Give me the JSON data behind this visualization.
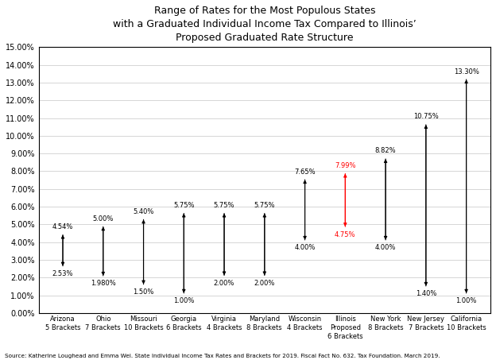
{
  "title": "Range of Rates for the Most Populous States\nwith a Graduated Individual Income Tax Compared to Illinois’\nProposed Graduated Rate Structure",
  "categories": [
    "Arizona\n5 Brackets",
    "Ohio\n7 Brackets",
    "Missouri\n10 Brackets",
    "Georgia\n6 Brackets",
    "Virginia\n4 Brackets",
    "Maryland\n8 Brackets",
    "Wisconsin\n4 Brackets",
    "Illinois\nProposed\n6 Brackets",
    "New York\n8 Brackets",
    "New Jersey\n7 Brackets",
    "California\n10 Brackets"
  ],
  "low_values": [
    2.53,
    1.98,
    1.5,
    1.0,
    2.0,
    2.0,
    4.0,
    4.75,
    4.0,
    1.4,
    1.0
  ],
  "high_values": [
    4.54,
    5.0,
    5.4,
    5.75,
    5.75,
    5.75,
    7.65,
    7.99,
    8.82,
    10.75,
    13.3
  ],
  "low_labels": [
    "2.53%",
    "1.980%",
    "1.50%",
    "1.00%",
    "2.00%",
    "2.00%",
    "4.00%",
    "4.75%",
    "4.00%",
    "1.40%",
    "1.00%"
  ],
  "high_labels": [
    "4.54%",
    "5.00%",
    "5.40%",
    "5.75%",
    "5.75%",
    "5.75%",
    "7.65%",
    "7.99%",
    "8.82%",
    "10.75%",
    "13.30%"
  ],
  "illinois_index": 7,
  "illinois_color": "#ff0000",
  "default_color": "#000000",
  "ylim": [
    0,
    15.0
  ],
  "yticks": [
    0,
    1,
    2,
    3,
    4,
    5,
    6,
    7,
    8,
    9,
    10,
    11,
    12,
    13,
    14,
    15
  ],
  "ytick_labels": [
    "0.00%",
    "1.00%",
    "2.00%",
    "3.00%",
    "4.00%",
    "5.00%",
    "6.00%",
    "7.00%",
    "8.00%",
    "9.00%",
    "10.00%",
    "11.00%",
    "12.00%",
    "13.00%",
    "14.00%",
    "15.00%"
  ],
  "footnote": "Source: Katherine Loughead and Emma Wei. State Individual Income Tax Rates and Brackets for 2019. Fiscal Fact No. 632. Tax Foundation. March 2019.",
  "figsize": [
    6.24,
    4.53
  ],
  "dpi": 100
}
